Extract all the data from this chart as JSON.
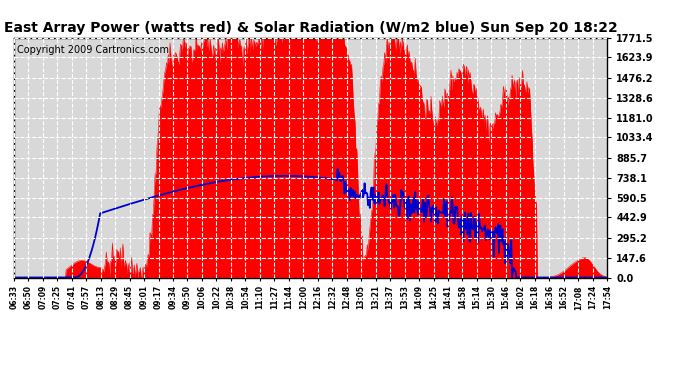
{
  "title": "East Array Power (watts red) & Solar Radiation (W/m2 blue) Sun Sep 20 18:22",
  "copyright": "Copyright 2009 Cartronics.com",
  "yticks": [
    0.0,
    147.6,
    295.2,
    442.9,
    590.5,
    738.1,
    885.7,
    1033.4,
    1181.0,
    1328.6,
    1476.2,
    1623.9,
    1771.5
  ],
  "ymax": 1771.5,
  "bg_color": "#ffffff",
  "plot_bg_color": "#d8d8d8",
  "grid_color": "#ffffff",
  "red_color": "#ff0000",
  "blue_color": "#0000cc",
  "title_fontsize": 10,
  "copyright_fontsize": 7,
  "xtick_labels": [
    "06:33",
    "06:50",
    "07:09",
    "07:25",
    "07:41",
    "07:57",
    "08:13",
    "08:29",
    "08:45",
    "09:01",
    "09:17",
    "09:34",
    "09:50",
    "10:06",
    "10:22",
    "10:38",
    "10:54",
    "11:10",
    "11:27",
    "11:44",
    "12:00",
    "12:16",
    "12:32",
    "12:48",
    "13:05",
    "13:21",
    "13:37",
    "13:53",
    "14:09",
    "14:25",
    "14:41",
    "14:58",
    "15:14",
    "15:30",
    "15:46",
    "16:02",
    "16:18",
    "16:36",
    "16:52",
    "17:08",
    "17:24",
    "17:54"
  ]
}
